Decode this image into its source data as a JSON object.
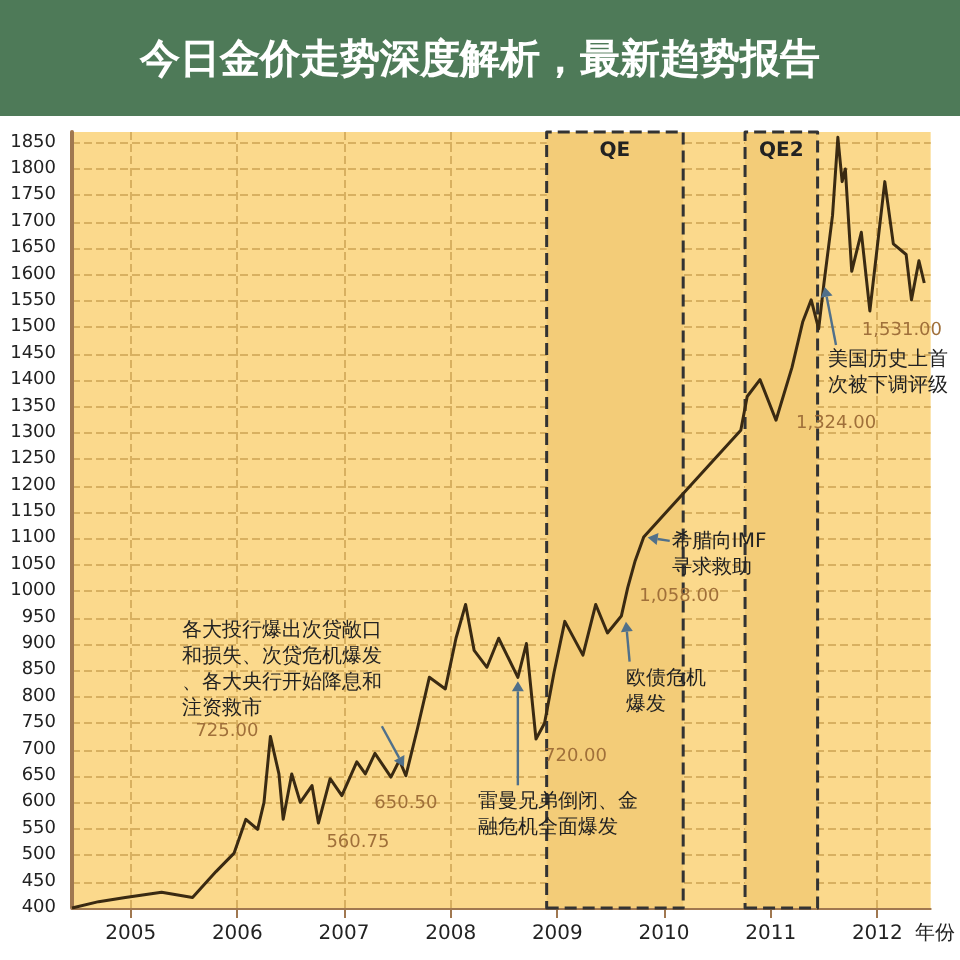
{
  "chart_data": {
    "type": "line",
    "title": "今日金价走势深度解析，最新趋势报告",
    "xlabel": "年份",
    "x": [
      2004.45,
      2004.7,
      2004.95,
      2005.29,
      2005.58,
      2005.8,
      2005.97,
      2006.08,
      2006.19,
      2006.25,
      2006.31,
      2006.39,
      2006.43,
      2006.51,
      2006.59,
      2006.7,
      2006.76,
      2006.87,
      2006.98,
      2007.12,
      2007.2,
      2007.29,
      2007.44,
      2007.52,
      2007.58,
      2007.69,
      2007.8,
      2007.95,
      2008.05,
      2008.14,
      2008.22,
      2008.34,
      2008.45,
      2008.63,
      2008.71,
      2008.8,
      2008.88,
      2008.97,
      2009.07,
      2009.24,
      2009.36,
      2009.47,
      2009.6,
      2009.66,
      2009.73,
      2009.81,
      2010.72,
      2010.78,
      2010.9,
      2011.05,
      2011.2,
      2011.3,
      2011.38,
      2011.45,
      2011.5,
      2011.58,
      2011.63,
      2011.67,
      2011.7,
      2011.76,
      2011.85,
      2011.93,
      2012.07,
      2012.15,
      2012.27,
      2012.32,
      2012.39,
      2012.44
    ],
    "series": [
      {
        "color": "#3a2a12",
        "values": [
          400,
          412,
          420,
          430,
          420,
          469,
          504,
          568,
          549,
          600,
          725,
          654,
          568,
          654,
          600,
          632,
          561,
          645,
          613,
          677,
          654,
          693,
          648,
          680,
          650.5,
          741,
          837,
          815,
          911,
          975,
          888,
          856,
          911,
          837,
          901,
          720,
          750,
          847,
          943,
          879,
          975,
          921,
          953,
          1007,
          1058,
          1103,
          1305,
          1369,
          1401,
          1324,
          1424,
          1510,
          1552,
          1497,
          1584,
          1712,
          1860,
          1776,
          1800,
          1606,
          1680,
          1531,
          1776,
          1658,
          1638,
          1552,
          1626,
          1584
        ]
      }
    ],
    "xlim": [
      2004.45,
      2012.5
    ],
    "xticks": [
      2005,
      2006,
      2007,
      2008,
      2009,
      2010,
      2011,
      2012
    ],
    "ylim": [
      400,
      1870
    ],
    "yticks": [
      400,
      450,
      500,
      550,
      600,
      650,
      700,
      750,
      800,
      850,
      900,
      950,
      1000,
      1050,
      1100,
      1150,
      1200,
      1250,
      1300,
      1350,
      1400,
      1450,
      1500,
      1550,
      1600,
      1650,
      1700,
      1750,
      1800,
      1850
    ],
    "grid": true,
    "bands": [
      {
        "axis": "x",
        "from": 2008.9,
        "to": 2010.18,
        "label": "QE",
        "color": "#f3cc78"
      },
      {
        "axis": "x",
        "from": 2010.76,
        "to": 2011.44,
        "label": "QE2",
        "color": "#f3cc78"
      }
    ],
    "annotations": [
      {
        "text": "725.00",
        "x": 2006.31,
        "y": 725
      },
      {
        "text": "560.75",
        "x": 2006.76,
        "y": 561
      },
      {
        "text": "650.50",
        "x": 2007.58,
        "y": 650.5
      },
      {
        "text": "720.00",
        "x": 2008.8,
        "y": 720
      },
      {
        "text": "1,058.00",
        "x": 2009.73,
        "y": 1058
      },
      {
        "text": "1,324.00",
        "x": 2011.05,
        "y": 1324
      },
      {
        "text": "1,531.00",
        "x": 2011.93,
        "y": 1531
      },
      {
        "text": "各大投行爆出次贷敞口和损失、次贷危机爆发、各大央行开始降息和注资救市",
        "x": 2007.58,
        "y": 661
      },
      {
        "text": "雷曼兄弟倒闭、金融危机全面爆发",
        "x": 2008.63,
        "y": 837
      },
      {
        "text": "欧债危机爆发",
        "x": 2009.64,
        "y": 950
      },
      {
        "text": "希腊向IMF寻求救助",
        "x": 2009.81,
        "y": 1103
      },
      {
        "text": "美国历史上首次被下调评级",
        "x": 2011.5,
        "y": 1584
      }
    ]
  }
}
